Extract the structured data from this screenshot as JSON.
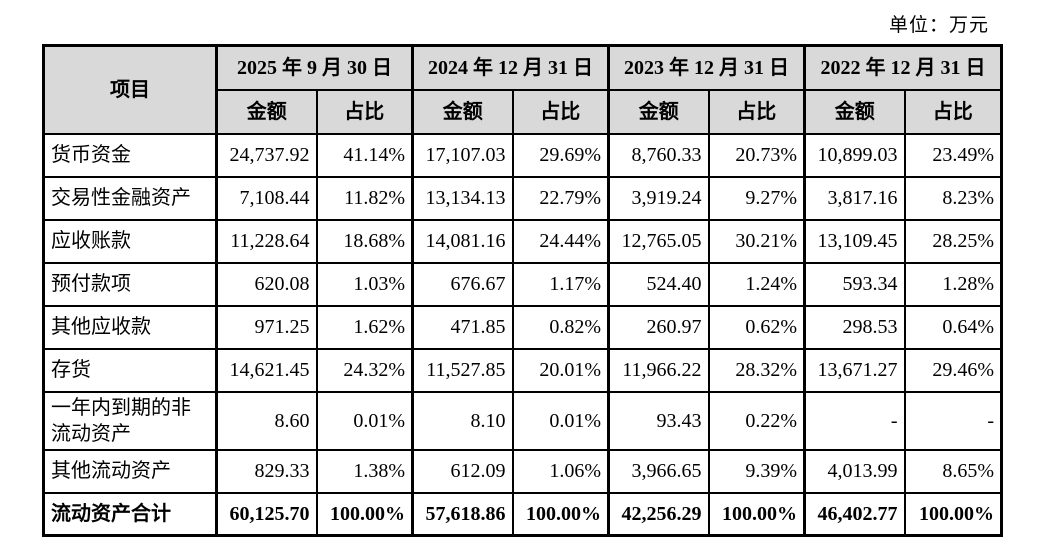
{
  "unit_label": "单位：万元",
  "colors": {
    "header_bg": "#d9d9d9",
    "border": "#000000",
    "text": "#000000",
    "page_bg": "#ffffff"
  },
  "table": {
    "item_header": "项目",
    "amount_header": "金额",
    "ratio_header": "占比",
    "periods": [
      "2025 年 9 月 30 日",
      "2024 年 12 月 31 日",
      "2023 年 12 月 31 日",
      "2022 年 12 月 31 日"
    ],
    "rows": [
      {
        "label": "货币资金",
        "bold": false,
        "values": [
          "24,737.92",
          "41.14%",
          "17,107.03",
          "29.69%",
          "8,760.33",
          "20.73%",
          "10,899.03",
          "23.49%"
        ]
      },
      {
        "label": "交易性金融资产",
        "bold": false,
        "values": [
          "7,108.44",
          "11.82%",
          "13,134.13",
          "22.79%",
          "3,919.24",
          "9.27%",
          "3,817.16",
          "8.23%"
        ]
      },
      {
        "label": "应收账款",
        "bold": false,
        "values": [
          "11,228.64",
          "18.68%",
          "14,081.16",
          "24.44%",
          "12,765.05",
          "30.21%",
          "13,109.45",
          "28.25%"
        ]
      },
      {
        "label": "预付款项",
        "bold": false,
        "values": [
          "620.08",
          "1.03%",
          "676.67",
          "1.17%",
          "524.40",
          "1.24%",
          "593.34",
          "1.28%"
        ]
      },
      {
        "label": "其他应收款",
        "bold": false,
        "values": [
          "971.25",
          "1.62%",
          "471.85",
          "0.82%",
          "260.97",
          "0.62%",
          "298.53",
          "0.64%"
        ]
      },
      {
        "label": "存货",
        "bold": false,
        "values": [
          "14,621.45",
          "24.32%",
          "11,527.85",
          "20.01%",
          "11,966.22",
          "28.32%",
          "13,671.27",
          "29.46%"
        ]
      },
      {
        "label": "一年内到期的非流动资产",
        "bold": false,
        "values": [
          "8.60",
          "0.01%",
          "8.10",
          "0.01%",
          "93.43",
          "0.22%",
          "-",
          "-"
        ]
      },
      {
        "label": "其他流动资产",
        "bold": false,
        "values": [
          "829.33",
          "1.38%",
          "612.09",
          "1.06%",
          "3,966.65",
          "9.39%",
          "4,013.99",
          "8.65%"
        ]
      },
      {
        "label": "流动资产合计",
        "bold": true,
        "values": [
          "60,125.70",
          "100.00%",
          "57,618.86",
          "100.00%",
          "42,256.29",
          "100.00%",
          "46,402.77",
          "100.00%"
        ]
      }
    ]
  }
}
